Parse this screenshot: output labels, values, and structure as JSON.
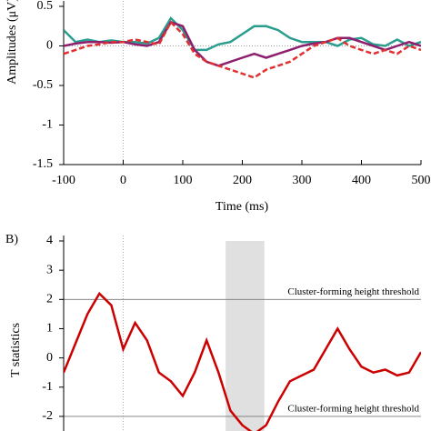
{
  "chart_data": [
    {
      "type": "line",
      "xlabel": "Time (ms)",
      "ylabel": "Amplitudes (μV)",
      "x": [
        -100,
        -80,
        -60,
        -40,
        -20,
        0,
        20,
        40,
        60,
        80,
        100,
        120,
        140,
        160,
        180,
        200,
        220,
        240,
        260,
        280,
        300,
        320,
        340,
        360,
        380,
        400,
        420,
        440,
        460,
        480,
        500
      ],
      "series": [
        {
          "color": "#2a9d8f",
          "dashed": false,
          "values": [
            0.2,
            0.05,
            0.08,
            0.05,
            0.07,
            0.05,
            0.05,
            0.03,
            0.1,
            0.35,
            0.2,
            -0.05,
            -0.05,
            0.02,
            0.05,
            0.15,
            0.25,
            0.25,
            0.2,
            0.1,
            0.05,
            0.05,
            0.05,
            0.0,
            0.08,
            0.1,
            0.02,
            0.0,
            0.08,
            0.0,
            0.05
          ]
        },
        {
          "color": "#8e1f6e",
          "dashed": false,
          "values": [
            0.0,
            0.03,
            0.05,
            0.05,
            0.04,
            0.05,
            0.02,
            0.0,
            0.05,
            0.3,
            0.25,
            -0.05,
            -0.2,
            -0.25,
            -0.2,
            -0.15,
            -0.1,
            -0.15,
            -0.1,
            -0.05,
            0.0,
            0.03,
            0.05,
            0.1,
            0.1,
            0.05,
            0.0,
            -0.05,
            0.0,
            0.05,
            0.0
          ]
        },
        {
          "color": "#e03030",
          "dashed": true,
          "values": [
            -0.1,
            -0.05,
            0.0,
            0.02,
            0.05,
            0.05,
            0.08,
            0.05,
            0.02,
            0.3,
            0.15,
            -0.1,
            -0.2,
            -0.25,
            -0.3,
            -0.35,
            -0.4,
            -0.3,
            -0.25,
            -0.2,
            -0.1,
            0.0,
            0.05,
            0.1,
            0.0,
            -0.05,
            -0.1,
            -0.05,
            -0.1,
            0.0,
            -0.05
          ]
        }
      ],
      "xlim": [
        -100,
        500
      ],
      "xticks": [
        -100,
        0,
        100,
        200,
        300,
        400,
        500
      ],
      "ylim": [
        -1.5,
        0.5
      ],
      "yticks": [
        0.5,
        0,
        -0.5,
        -1,
        -1.5
      ],
      "zero_lines": true
    },
    {
      "type": "line",
      "panel_label": "B)",
      "ylabel": "T statistics",
      "x": [
        -100,
        -80,
        -60,
        -40,
        -20,
        0,
        20,
        40,
        60,
        80,
        100,
        120,
        140,
        160,
        180,
        200,
        220,
        240,
        260,
        280,
        300,
        320,
        340,
        360,
        380,
        400,
        420,
        440,
        460,
        480,
        500
      ],
      "series": [
        {
          "color": "#cc0000",
          "dashed": false,
          "values": [
            -0.5,
            0.5,
            1.5,
            2.2,
            1.8,
            0.3,
            1.2,
            0.6,
            -0.5,
            -0.8,
            -1.3,
            -0.5,
            0.6,
            -0.5,
            -1.8,
            -2.3,
            -2.6,
            -2.3,
            -1.5,
            -0.8,
            -0.6,
            -0.4,
            0.3,
            1.0,
            0.3,
            -0.3,
            -0.5,
            -0.4,
            -0.6,
            -0.5,
            0.2
          ]
        }
      ],
      "xlim": [
        -100,
        500
      ],
      "ylim": [
        -2.5,
        4
      ],
      "yticks": [
        4,
        3,
        2,
        1,
        0,
        -1,
        -2
      ],
      "highlight_x": [
        172,
        237
      ],
      "thresholds": [
        2,
        -2
      ],
      "annotations": [
        "Cluster-forming height threshold",
        "Cluster-forming height threshold"
      ],
      "zero_lines": true
    }
  ]
}
